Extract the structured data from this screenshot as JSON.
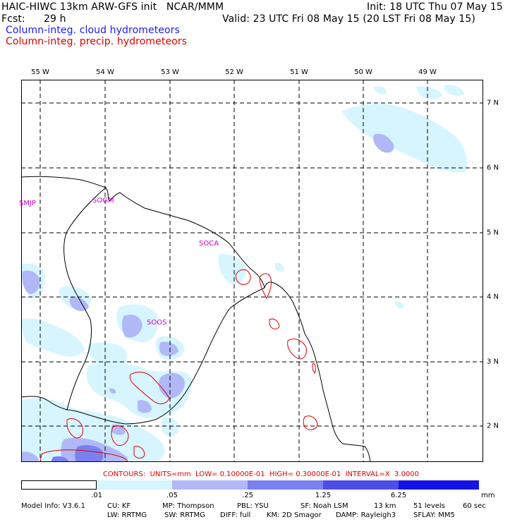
{
  "header": {
    "model_title": "HAIC-HIWC 13km ARW-GFS init   NCAR/MMM",
    "init": "Init: 18 UTC Thu 07 May 15",
    "fcst_label": "Fcst:",
    "fcst_value": "29 h",
    "valid": "Valid: 23 UTC Fri 08 May 15 (20 LST Fri 08 May 15)",
    "field_blue": "Column-integ. cloud hydrometeors",
    "field_red": "Column-integ. precip. hydrometeors"
  },
  "axes": {
    "longitude_labels": [
      "55 W",
      "54 W",
      "53 W",
      "52 W",
      "51 W",
      "50 W",
      "49 W"
    ],
    "latitude_labels": [
      "7 N",
      "6 N",
      "5 N",
      "4 N",
      "3 N",
      "2 N"
    ]
  },
  "stations": [
    "SMJP",
    "SOGM",
    "SOCA",
    "SOOS"
  ],
  "contours_text": "CONTOURS:  UNITS=mm  LOW= 0.10000E-01  HIGH= 0.30000E-01  INTERVAL=X  3.0000",
  "legend": {
    "ticks": [
      ".01",
      ".05",
      ".25",
      "1.25",
      "6.25"
    ],
    "unit": "mm",
    "colors": [
      "#ffffff",
      "#d6f5ff",
      "#b0b8f8",
      "#7a80ee",
      "#4d4de8",
      "#1414e6"
    ]
  },
  "colors": {
    "cloud_light": "#d6f5ff",
    "cloud_mid": "#b0b8f8",
    "cloud_dark": "#7a80ee",
    "precip_contour": "#e00000",
    "station_label": "#cc00cc",
    "header_blue": "#1a1aff",
    "header_red": "#e00000"
  },
  "model_info": {
    "line1": [
      "Model Info: V3.6.1",
      "CU: KF",
      "MP: Thompson",
      "PBL: YSU",
      "SF: Noah LSM",
      "13 km",
      "51 levels",
      "60 sec"
    ],
    "line2": [
      "LW: RRTMG",
      "SW: RRTMG",
      "DIFF: full",
      "KM: 2D Smagor",
      "DAMP: Rayleigh3",
      "SFLAY: MM5"
    ]
  }
}
